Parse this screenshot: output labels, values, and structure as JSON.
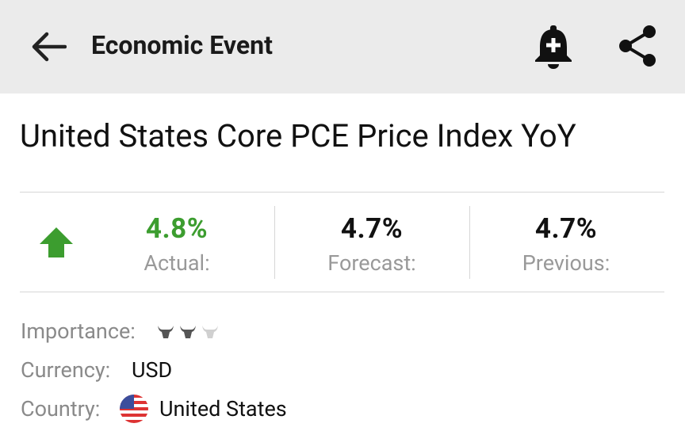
{
  "header": {
    "title": "Economic Event"
  },
  "event": {
    "title": "United States Core PCE Price Index YoY"
  },
  "stats": {
    "actual": {
      "value": "4.8%",
      "label": "Actual:"
    },
    "forecast": {
      "value": "4.7%",
      "label": "Forecast:"
    },
    "previous": {
      "value": "4.7%",
      "label": "Previous:"
    }
  },
  "details": {
    "importance_label": "Importance:",
    "currency_label": "Currency:",
    "currency": "USD",
    "country_label": "Country:",
    "country": "United States"
  }
}
